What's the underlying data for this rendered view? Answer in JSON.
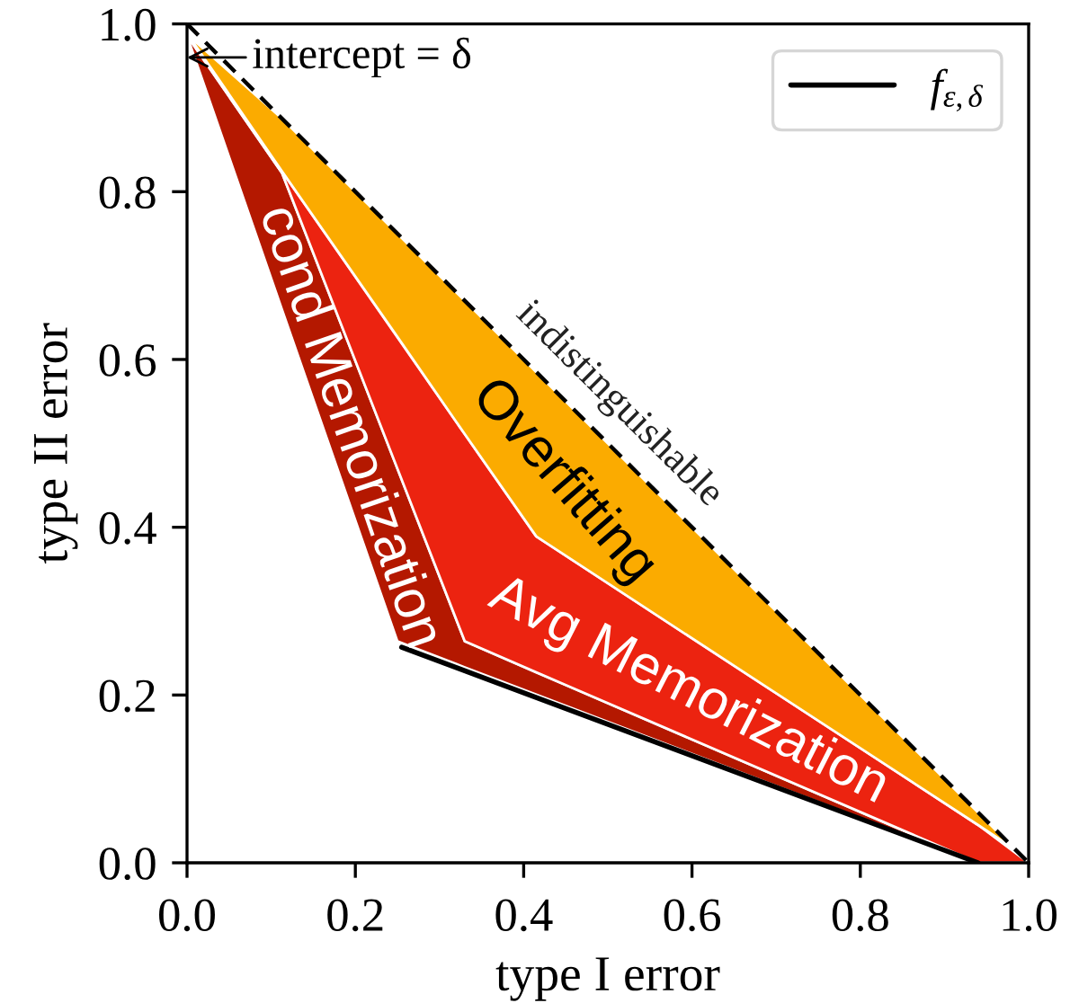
{
  "chart_data": {
    "type": "area",
    "xlabel": "type I error",
    "ylabel": "type II error",
    "xlim": [
      0,
      1
    ],
    "ylim": [
      0,
      1
    ],
    "xticks": [
      {
        "value": 0,
        "label": "0.0"
      },
      0.2,
      0.4,
      0.6,
      0.8,
      {
        "value": 1,
        "label": "1.0"
      }
    ],
    "yticks": [
      {
        "value": 0,
        "label": "0.0"
      },
      0.2,
      0.4,
      0.6,
      0.8,
      {
        "value": 1,
        "label": "1.0"
      }
    ],
    "legend": "top right",
    "series": [
      {
        "color": "#b41800",
        "x": [
          0.0,
          0.113,
          0.25,
          0.33,
          0.94
        ],
        "values": [
          null,
          null,
          null,
          null,
          null
        ],
        "lower": [
          0.986,
          0.659,
          0.264,
          0.233,
          0.0
        ],
        "upper": [
          0.986,
          0.822,
          0.47,
          0.264,
          0.0
        ]
      },
      {
        "color": "#ec2310",
        "x": [
          0.0,
          0.113,
          0.33,
          0.415,
          0.94,
          1.0
        ],
        "values": [
          null,
          null,
          null,
          null,
          null,
          null
        ],
        "lower": [
          0.986,
          0.822,
          0.264,
          0.227,
          0.0,
          0.0
        ],
        "upper": [
          0.986,
          0.824,
          0.511,
          0.389,
          0.045,
          0.0
        ]
      },
      {
        "color": "#fbab00",
        "x": [
          0.002,
          0.113,
          0.25,
          0.33,
          0.415,
          0.7,
          0.94,
          0.985
        ],
        "values": [
          null,
          null,
          null,
          null,
          null,
          null,
          null,
          null
        ],
        "lower": [
          0.986,
          0.824,
          0.627,
          0.511,
          0.389,
          0.202,
          0.045,
          0.015
        ],
        "upper": [
          0.986,
          0.887,
          0.75,
          0.67,
          0.585,
          0.3,
          0.06,
          0.015
        ]
      },
      {
        "type": "line",
        "line_style": "dashed",
        "color": "#000000",
        "x": [
          0,
          1
        ],
        "values": [
          1,
          0
        ]
      },
      {
        "type": "line",
        "line_style": "solid",
        "name": "f$_{ε,δ}$",
        "color": "#000000",
        "x": [
          0.255,
          0.94
        ],
        "values": [
          0.257,
          0.0
        ]
      }
    ],
    "annotations": [
      {
        "text": "intercept = δ",
        "x": 0,
        "y": 0.96
      },
      "indistinguishable",
      "Overfitting",
      "Avg Memorization",
      "cond Memorization"
    ]
  }
}
